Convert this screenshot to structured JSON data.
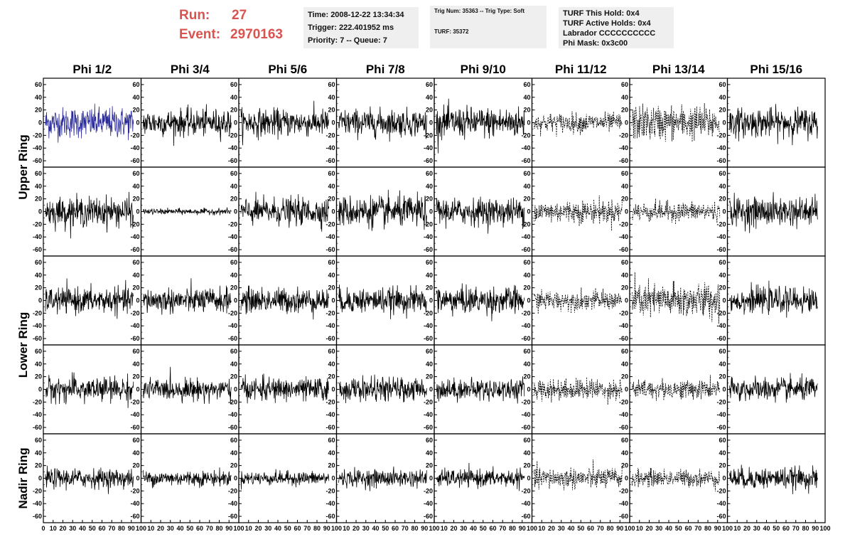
{
  "header": {
    "run_label": "Run:",
    "run_value": "27",
    "event_label": "Event:",
    "event_value": "2970163",
    "time_line": "Time: 2008-12-22 13:34:34",
    "trigger_line": "Trigger: 222.401952 ms",
    "priority_line": "Priority: 7 -- Queue: 7",
    "trig_num_line": "Trig Num: 35363 -- Trig Type: Soft",
    "turf_line": "TURF: 35372",
    "turf_hold_line": "TURF This Hold: 0x4",
    "turf_active_line": "TURF Active Holds: 0x4",
    "labrador_line": "Labrador CCCCCCCCCC",
    "phi_mask_line": "Phi Mask: 0x3c00",
    "run_color": "#d9534f",
    "box_bg": "#efefef"
  },
  "chart_data": {
    "type": "line",
    "columns": [
      "Phi 1/2",
      "Phi 3/4",
      "Phi 5/6",
      "Phi 7/8",
      "Phi 9/10",
      "Phi 11/12",
      "Phi 13/14",
      "Phi 15/16"
    ],
    "rows": [
      "Upper Ring",
      "Upper Ring",
      "Lower Ring",
      "Lower Ring",
      "Nadir Ring"
    ],
    "row_titles": [
      "Upper Ring",
      "Lower Ring",
      "Nadir Ring"
    ],
    "ylim": [
      -70,
      70
    ],
    "xlim": [
      0,
      100
    ],
    "y_ticks": [
      "-60",
      "-40",
      "-20",
      "0",
      "20",
      "40",
      "60"
    ],
    "x_tick_labels": [
      "0",
      "10",
      "20",
      "30",
      "40",
      "50",
      "60",
      "70",
      "80",
      "90",
      "100"
    ],
    "highlight_color": "#2b2b9a",
    "trace_color": "#000000",
    "highlight_panel": [
      0,
      0
    ],
    "dashed_columns": [
      5,
      6
    ],
    "amplitude": [
      [
        16,
        14,
        14,
        14,
        16,
        10,
        18,
        15
      ],
      [
        15,
        3,
        14,
        16,
        14,
        12,
        10,
        15
      ],
      [
        13,
        13,
        13,
        13,
        14,
        10,
        18,
        13
      ],
      [
        13,
        11,
        12,
        12,
        11,
        11,
        10,
        12
      ],
      [
        10,
        8,
        7,
        9,
        9,
        11,
        9,
        11
      ]
    ]
  }
}
